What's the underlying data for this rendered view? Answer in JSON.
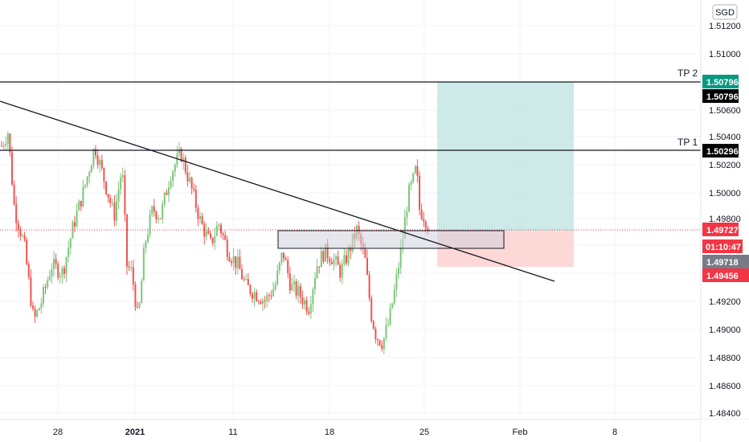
{
  "chart_data": {
    "type": "candlestick",
    "currency": "SGD",
    "price_axis": {
      "ticks": [
        "1.51200",
        "1.51000",
        "1.50600",
        "1.50400",
        "1.50200",
        "1.50000",
        "1.49800",
        "1.49200",
        "1.49000",
        "1.48800",
        "1.48600",
        "1.48400"
      ],
      "range": [
        1.4834,
        1.5137
      ]
    },
    "time_axis": {
      "ticks": [
        "28",
        "2021",
        "11",
        "18",
        "25",
        "Feb",
        "8"
      ]
    },
    "price_tags": [
      {
        "label": "1.50796",
        "bg": "#089981"
      },
      {
        "label": "1.50796",
        "bg": "#000000"
      },
      {
        "label": "1.50296",
        "bg": "#000000"
      },
      {
        "label": "1.49727",
        "bg": "#f23645"
      },
      {
        "label": "01:10:47",
        "bg": "#f23645"
      },
      {
        "label": "1.49718",
        "bg": "#787b86"
      },
      {
        "label": "1.49456",
        "bg": "#f23645"
      }
    ],
    "horizontal_lines": [
      {
        "label": "TP 2",
        "price": 1.50796
      },
      {
        "label": "TP 1",
        "price": 1.50296
      }
    ],
    "current_price": 1.49727,
    "position": {
      "entry": 1.49727,
      "target": 1.50796,
      "stop": 1.49456
    },
    "zone": {
      "top": 1.4973,
      "bottom": 1.496
    },
    "colors": {
      "up": "#26a69a",
      "up_body": "#7cc67a",
      "down": "#ef5350",
      "profit": "#b2dfdb",
      "loss": "#fbcbca"
    },
    "candles": []
  }
}
